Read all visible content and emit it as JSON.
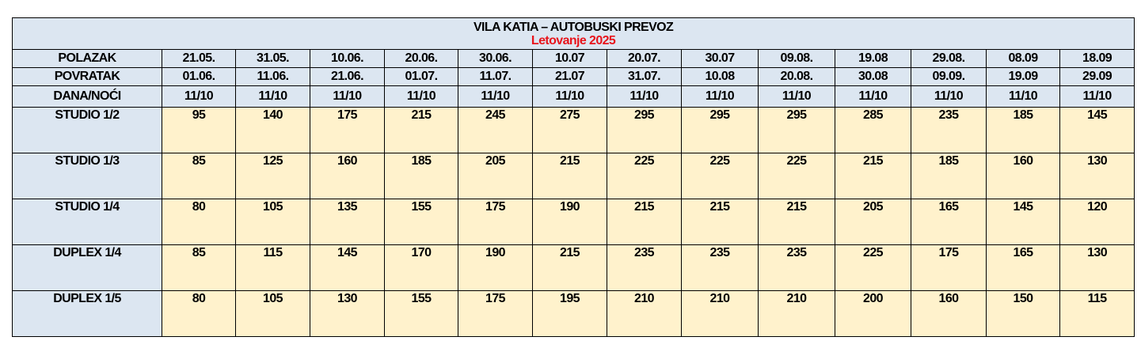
{
  "header": {
    "title": "VILA KATIA – AUTOBUSKI PREVOZ",
    "subtitle": "Letovanje 2025"
  },
  "table": {
    "departure_label": "POLAZAK",
    "departures": [
      "21.05.",
      "31.05.",
      "10.06.",
      "20.06.",
      "30.06.",
      "10.07",
      "20.07.",
      "30.07",
      "09.08.",
      "19.08",
      "29.08.",
      "08.09",
      "18.09"
    ],
    "return_label": "POVRATAK",
    "returns": [
      "01.06.",
      "11.06.",
      "21.06.",
      "01.07.",
      "11.07.",
      "21.07",
      "31.07.",
      "10.08",
      "20.08.",
      "30.08",
      "09.09.",
      "19.09",
      "29.09"
    ],
    "nights_label": "DANA/NOĆI",
    "nights": [
      "11/10",
      "11/10",
      "11/10",
      "11/10",
      "11/10",
      "11/10",
      "11/10",
      "11/10",
      "11/10",
      "11/10",
      "11/10",
      "11/10",
      "11/10"
    ],
    "rows": [
      {
        "label": "STUDIO 1/2",
        "values": [
          95,
          140,
          175,
          215,
          245,
          275,
          295,
          295,
          295,
          285,
          235,
          185,
          145
        ]
      },
      {
        "label": "STUDIO 1/3",
        "values": [
          85,
          125,
          160,
          185,
          205,
          215,
          225,
          225,
          225,
          215,
          185,
          160,
          130
        ]
      },
      {
        "label": "STUDIO 1/4",
        "values": [
          80,
          105,
          135,
          155,
          175,
          190,
          215,
          215,
          215,
          205,
          165,
          145,
          120
        ]
      },
      {
        "label": "DUPLEX 1/4",
        "values": [
          85,
          115,
          145,
          170,
          190,
          215,
          235,
          235,
          235,
          225,
          175,
          165,
          130
        ]
      },
      {
        "label": "DUPLEX 1/5",
        "values": [
          80,
          105,
          130,
          155,
          175,
          195,
          210,
          210,
          210,
          200,
          160,
          150,
          115
        ]
      }
    ]
  }
}
